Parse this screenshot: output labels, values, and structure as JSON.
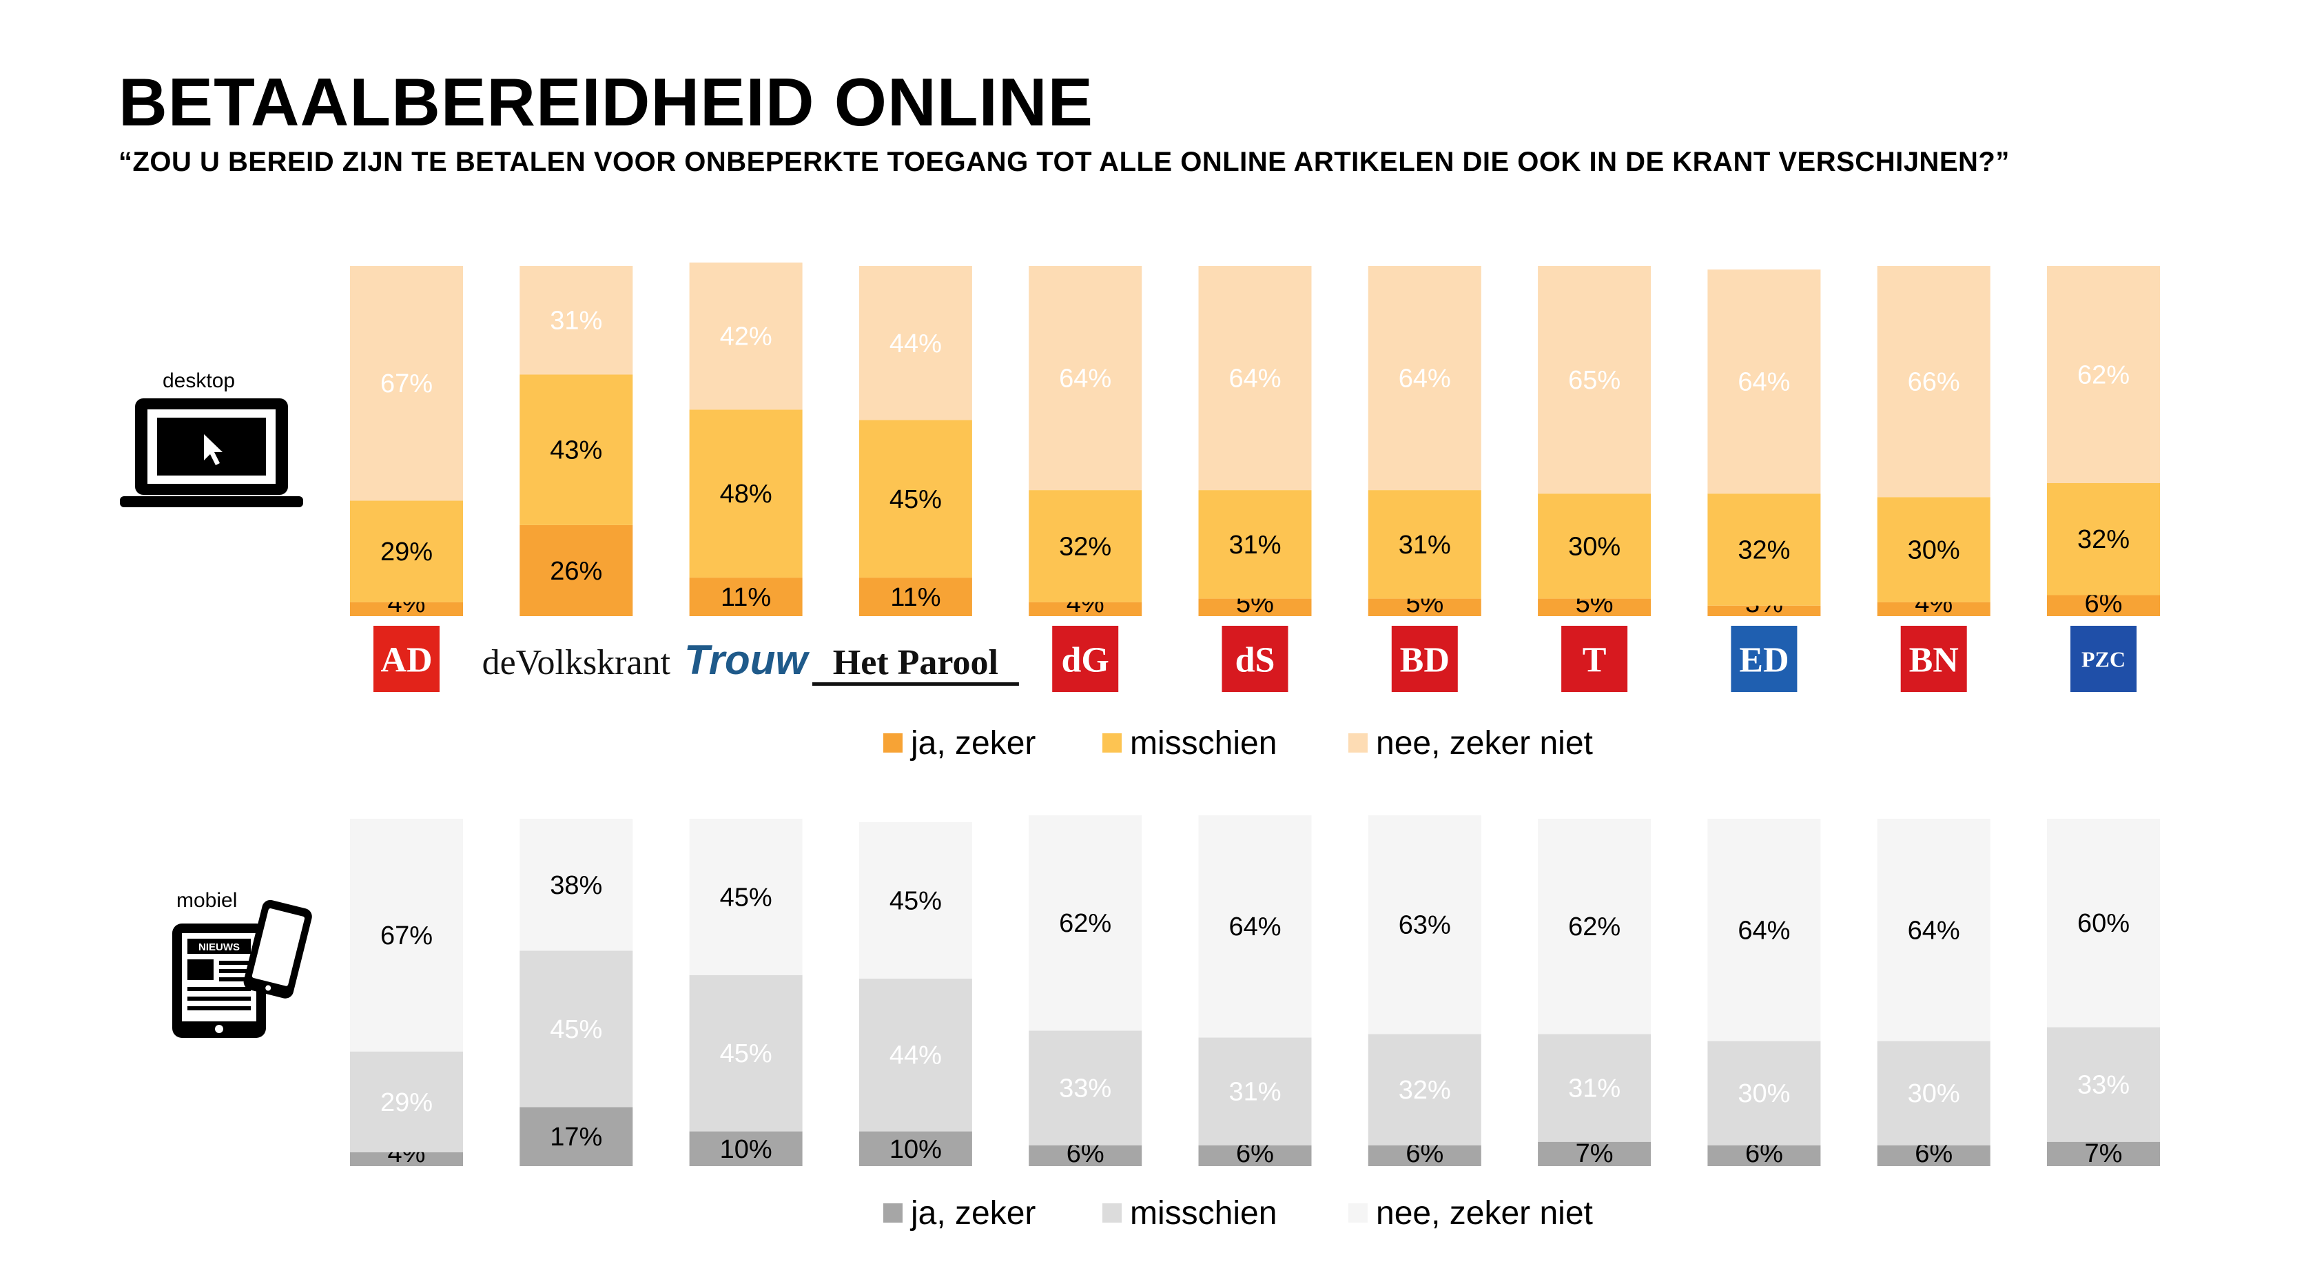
{
  "title": "BETAALBEREIDHEID ONLINE",
  "subtitle": "“ZOU U BEREID ZIJN TE BETALEN VOOR ONBEPERKTE TOEGANG TOT ALLE ONLINE ARTIKELEN DIE OOK IN DE KRANT VERSCHIJNEN?”",
  "devices": {
    "desktop": {
      "label": "desktop",
      "icon": "laptop-icon"
    },
    "mobile": {
      "label": "mobiel",
      "icon": "tablet-phone-icon"
    }
  },
  "logos": [
    {
      "name": "AD",
      "text": "AD",
      "bg": "#e2231a",
      "fg": "#ffffff"
    },
    {
      "name": "deVolkskrant",
      "text": "deVolkskrant",
      "bg": "",
      "fg": "#111111"
    },
    {
      "name": "Trouw",
      "text": "Trouw",
      "bg": "",
      "fg": "#1f5a8a"
    },
    {
      "name": "Het Parool",
      "text": "Het Parool",
      "bg": "",
      "fg": "#111111"
    },
    {
      "name": "De Gelderlander",
      "text": "dG",
      "bg": "#d7191f",
      "fg": "#ffffff"
    },
    {
      "name": "De Stentor",
      "text": "dS",
      "bg": "#d7191f",
      "fg": "#ffffff"
    },
    {
      "name": "BN/DeStem BD",
      "text": "BD",
      "bg": "#d7191f",
      "fg": "#ffffff"
    },
    {
      "name": "Tubantia",
      "text": "T",
      "bg": "#d7191f",
      "fg": "#ffffff"
    },
    {
      "name": "ED",
      "text": "ED",
      "bg": "#1f5fb0",
      "fg": "#ffffff"
    },
    {
      "name": "BN DeStem",
      "text": "BN",
      "bg": "#d7191f",
      "fg": "#ffffff"
    },
    {
      "name": "PZC",
      "text": "PZC",
      "bg": "#1f4fa8",
      "fg": "#ffffff"
    }
  ],
  "chart_data": [
    {
      "type": "bar",
      "stacked": true,
      "device": "desktop",
      "categories": [
        "AD",
        "de Volkskrant",
        "Trouw",
        "Het Parool",
        "De Gelderlander",
        "De Stentor",
        "BD",
        "Tubantia",
        "ED",
        "BN DeStem",
        "PZC"
      ],
      "series": [
        {
          "name": "ja, zeker",
          "color": "#f7a335",
          "values": [
            4,
            26,
            11,
            11,
            4,
            5,
            5,
            5,
            3,
            4,
            6
          ]
        },
        {
          "name": "misschien",
          "color": "#fdc452",
          "values": [
            29,
            43,
            48,
            45,
            32,
            31,
            31,
            30,
            32,
            30,
            32
          ]
        },
        {
          "name": "nee, zeker niet",
          "color": "#fddcb4",
          "values": [
            67,
            31,
            42,
            44,
            64,
            64,
            64,
            65,
            64,
            66,
            62
          ]
        }
      ],
      "label_colors": [
        "#000000",
        "#000000",
        "#ffffff"
      ],
      "ylim": [
        0,
        100
      ],
      "legend_position": "bottom"
    },
    {
      "type": "bar",
      "stacked": true,
      "device": "mobiel",
      "categories": [
        "AD",
        "de Volkskrant",
        "Trouw",
        "Het Parool",
        "De Gelderlander",
        "De Stentor",
        "BD",
        "Tubantia",
        "ED",
        "BN DeStem",
        "PZC"
      ],
      "series": [
        {
          "name": "ja, zeker",
          "color": "#a6a6a6",
          "values": [
            4,
            17,
            10,
            10,
            6,
            6,
            6,
            7,
            6,
            6,
            7
          ]
        },
        {
          "name": "misschien",
          "color": "#dcdcdc",
          "values": [
            29,
            45,
            45,
            44,
            33,
            31,
            32,
            31,
            30,
            30,
            33
          ]
        },
        {
          "name": "nee, zeker niet",
          "color": "#f5f5f5",
          "values": [
            67,
            38,
            45,
            45,
            62,
            64,
            63,
            62,
            64,
            64,
            60
          ]
        }
      ],
      "label_colors": [
        "#000000",
        "#ffffff",
        "#000000"
      ],
      "ylim": [
        0,
        100
      ],
      "legend_position": "bottom"
    }
  ]
}
